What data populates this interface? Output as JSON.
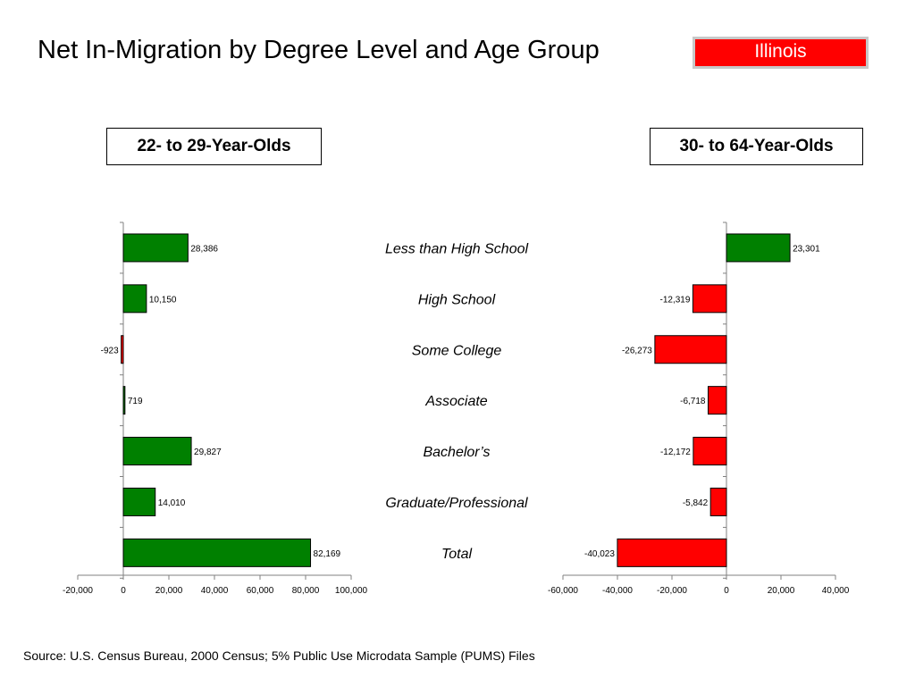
{
  "title": "Net In-Migration by Degree Level and Age Group",
  "state": "Illinois",
  "source": "Source:  U.S. Census Bureau, 2000 Census; 5% Public Use Microdata Sample (PUMS) Files",
  "colors": {
    "positive": "#008000",
    "negative": "#ff0000",
    "badge": "#ff0000"
  },
  "chart_data": [
    {
      "type": "bar",
      "orientation": "horizontal",
      "title": "22- to 29-Year-Olds",
      "categories": [
        "Less than High School",
        "High School",
        "Some College",
        "Associate",
        "Bachelor’s",
        "Graduate/Professional",
        "Total"
      ],
      "values": [
        28386,
        10150,
        -923,
        719,
        29827,
        14010,
        82169
      ],
      "value_labels": [
        "28,386",
        "10,150",
        "-923",
        "719",
        "29,827",
        "14,010",
        "82,169"
      ],
      "xlim": [
        -20000,
        100000
      ],
      "xticks": [
        -20000,
        0,
        20000,
        40000,
        60000,
        80000,
        100000
      ],
      "xtick_labels": [
        "-20,000",
        "0",
        "20,000",
        "40,000",
        "60,000",
        "80,000",
        "100,000"
      ],
      "grid": false,
      "legend": "none"
    },
    {
      "type": "bar",
      "orientation": "horizontal",
      "title": "30- to 64-Year-Olds",
      "categories": [
        "Less than High School",
        "High School",
        "Some College",
        "Associate",
        "Bachelor’s",
        "Graduate/Professional",
        "Total"
      ],
      "values": [
        23301,
        -12319,
        -26273,
        -6718,
        -12172,
        -5842,
        -40023
      ],
      "value_labels": [
        "23,301",
        "-12,319",
        "-26,273",
        "-6,718",
        "-12,172",
        "-5,842",
        "-40,023"
      ],
      "xlim": [
        -60000,
        40000
      ],
      "xticks": [
        -60000,
        -40000,
        -20000,
        0,
        20000,
        40000
      ],
      "xtick_labels": [
        "-60,000",
        "-40,000",
        "-20,000",
        "0",
        "20,000",
        "40,000"
      ],
      "grid": false,
      "legend": "none"
    }
  ]
}
